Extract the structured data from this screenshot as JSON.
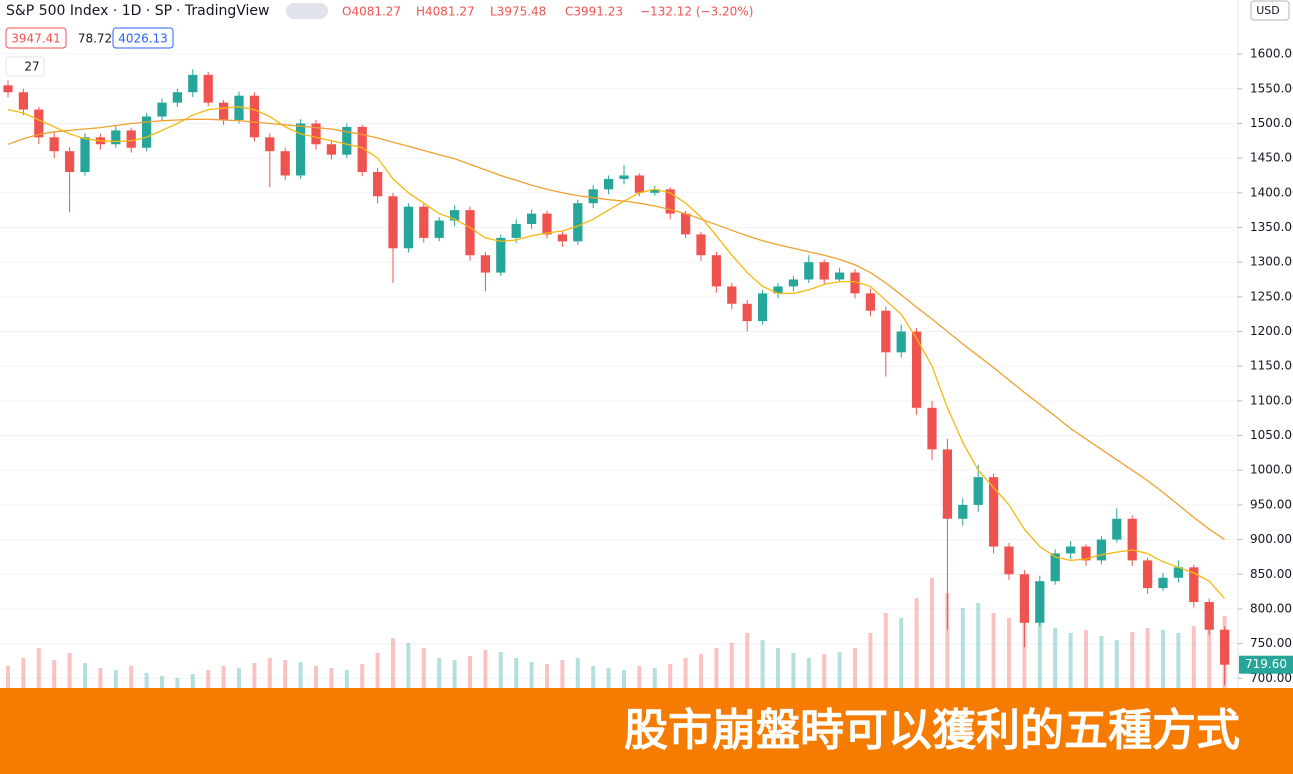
{
  "chart_data": {
    "type": "candlestick",
    "header": {
      "symbol": "S&P 500 Index · 1D · SP",
      "source": "· TradingView",
      "open": "O4081.27",
      "high": "H4081.27",
      "low": "L3975.48",
      "close": "C3991.23",
      "change": "−132.12 (−3.20%)"
    },
    "indicator_values": [
      "3947.41",
      "78.72",
      "4026.13"
    ],
    "volume_label": "27",
    "currency": "USD",
    "banner": "股市崩盤時可以獲利的五種方式",
    "up_color": "#26a69a",
    "down_color": "#ef5350",
    "open": [
      1555,
      1545,
      1520,
      1480,
      1460,
      1430,
      1480,
      1470,
      1490,
      1465,
      1510,
      1530,
      1545,
      1570,
      1530,
      1505,
      1540,
      1480,
      1460,
      1425,
      1500,
      1470,
      1455,
      1495,
      1430,
      1395,
      1320,
      1380,
      1335,
      1360,
      1375,
      1310,
      1285,
      1335,
      1355,
      1370,
      1340,
      1330,
      1385,
      1405,
      1420,
      1425,
      1400,
      1405,
      1370,
      1340,
      1310,
      1265,
      1240,
      1215,
      1255,
      1265,
      1275,
      1300,
      1275,
      1285,
      1255,
      1230,
      1170,
      1200,
      1090,
      1030,
      930,
      950,
      990,
      890,
      850,
      780,
      840,
      880,
      890,
      870,
      900,
      930,
      870,
      830,
      845,
      860,
      810,
      770
    ],
    "high": [
      1562,
      1550,
      1524,
      1488,
      1466,
      1486,
      1485,
      1497,
      1494,
      1515,
      1536,
      1550,
      1578,
      1574,
      1534,
      1546,
      1545,
      1486,
      1465,
      1506,
      1505,
      1475,
      1500,
      1498,
      1436,
      1400,
      1385,
      1384,
      1365,
      1382,
      1380,
      1315,
      1340,
      1362,
      1376,
      1374,
      1345,
      1390,
      1411,
      1425,
      1440,
      1428,
      1410,
      1408,
      1374,
      1344,
      1315,
      1270,
      1246,
      1260,
      1270,
      1280,
      1310,
      1304,
      1292,
      1290,
      1262,
      1236,
      1210,
      1205,
      1100,
      1045,
      960,
      1008,
      995,
      895,
      856,
      848,
      886,
      898,
      893,
      905,
      945,
      935,
      874,
      852,
      870,
      864,
      815,
      775
    ],
    "low": [
      1538,
      1512,
      1470,
      1450,
      1372,
      1425,
      1462,
      1465,
      1458,
      1460,
      1505,
      1524,
      1538,
      1525,
      1498,
      1500,
      1474,
      1408,
      1418,
      1420,
      1462,
      1448,
      1450,
      1424,
      1385,
      1270,
      1314,
      1328,
      1330,
      1352,
      1302,
      1258,
      1280,
      1328,
      1348,
      1334,
      1322,
      1325,
      1378,
      1398,
      1412,
      1395,
      1396,
      1362,
      1335,
      1302,
      1256,
      1232,
      1200,
      1210,
      1248,
      1258,
      1270,
      1268,
      1272,
      1248,
      1222,
      1135,
      1162,
      1080,
      1015,
      770,
      920,
      940,
      880,
      842,
      745,
      775,
      835,
      872,
      862,
      864,
      896,
      862,
      822,
      826,
      838,
      802,
      762,
      690
    ],
    "close": [
      1545,
      1520,
      1480,
      1460,
      1430,
      1480,
      1470,
      1490,
      1465,
      1510,
      1530,
      1545,
      1570,
      1530,
      1505,
      1540,
      1480,
      1460,
      1425,
      1500,
      1470,
      1455,
      1495,
      1430,
      1395,
      1320,
      1380,
      1335,
      1360,
      1375,
      1310,
      1285,
      1335,
      1355,
      1370,
      1340,
      1330,
      1385,
      1405,
      1420,
      1425,
      1400,
      1405,
      1370,
      1340,
      1310,
      1265,
      1240,
      1215,
      1255,
      1265,
      1275,
      1300,
      1275,
      1285,
      1255,
      1230,
      1170,
      1200,
      1090,
      1030,
      930,
      950,
      990,
      890,
      850,
      780,
      840,
      880,
      890,
      870,
      900,
      930,
      870,
      830,
      845,
      860,
      810,
      770,
      719.6
    ],
    "last_price_label": "719.60",
    "volume": [
      22,
      30,
      40,
      28,
      35,
      25,
      20,
      18,
      22,
      15,
      12,
      10,
      14,
      18,
      22,
      20,
      25,
      30,
      28,
      26,
      22,
      20,
      18,
      24,
      35,
      50,
      45,
      40,
      30,
      28,
      32,
      38,
      36,
      30,
      26,
      24,
      28,
      30,
      22,
      20,
      18,
      22,
      20,
      24,
      30,
      34,
      40,
      45,
      55,
      48,
      40,
      35,
      30,
      34,
      36,
      40,
      55,
      75,
      70,
      90,
      110,
      95,
      80,
      85,
      75,
      70,
      90,
      65,
      60,
      55,
      58,
      52,
      48,
      56,
      60,
      58,
      55,
      62,
      70,
      72
    ],
    "lines": [
      {
        "color": "#f5b90f",
        "values": [
          1520,
          1515,
          1505,
          1495,
          1485,
          1478,
          1475,
          1474,
          1475,
          1480,
          1490,
          1500,
          1512,
          1520,
          1522,
          1524,
          1520,
          1510,
          1495,
          1485,
          1480,
          1475,
          1470,
          1465,
          1450,
          1420,
          1400,
          1385,
          1370,
          1362,
          1350,
          1335,
          1330,
          1332,
          1338,
          1342,
          1345,
          1352,
          1362,
          1375,
          1388,
          1400,
          1405,
          1400,
          1385,
          1365,
          1338,
          1310,
          1285,
          1265,
          1255,
          1255,
          1260,
          1268,
          1272,
          1272,
          1265,
          1245,
          1225,
          1190,
          1150,
          1090,
          1040,
          1000,
          975,
          950,
          915,
          890,
          875,
          870,
          872,
          878,
          882,
          885,
          880,
          868,
          860,
          852,
          840,
          815
        ]
      },
      {
        "color": "#f0a030",
        "values": [
          1470,
          1478,
          1484,
          1488,
          1490,
          1492,
          1494,
          1497,
          1500,
          1502,
          1504,
          1505,
          1506,
          1506,
          1505,
          1504,
          1502,
          1500,
          1498,
          1496,
          1494,
          1492,
          1488,
          1484,
          1479,
          1473,
          1467,
          1461,
          1455,
          1449,
          1441,
          1433,
          1425,
          1418,
          1411,
          1405,
          1400,
          1396,
          1393,
          1390,
          1388,
          1385,
          1381,
          1376,
          1370,
          1362,
          1354,
          1346,
          1338,
          1331,
          1325,
          1320,
          1315,
          1310,
          1304,
          1296,
          1285,
          1270,
          1253,
          1235,
          1218,
          1200,
          1182,
          1165,
          1148,
          1130,
          1112,
          1095,
          1078,
          1060,
          1045,
          1030,
          1015,
          1000,
          985,
          968,
          950,
          932,
          915,
          900
        ]
      }
    ],
    "ylim": [
      686,
      1678
    ],
    "yticks": [
      {
        "value": 700,
        "label": "700.00"
      },
      {
        "value": 750,
        "label": "750.00"
      },
      {
        "value": 800,
        "label": "800.00"
      },
      {
        "value": 850,
        "label": "850.00"
      },
      {
        "value": 900,
        "label": "900.00"
      },
      {
        "value": 950,
        "label": "950.00"
      },
      {
        "value": 1000,
        "label": "1000.00"
      },
      {
        "value": 1050,
        "label": "1050.00"
      },
      {
        "value": 1100,
        "label": "1100.00"
      },
      {
        "value": 1150,
        "label": "1150.00"
      },
      {
        "value": 1200,
        "label": "1200.00"
      },
      {
        "value": 1250,
        "label": "1250.00"
      },
      {
        "value": 1300,
        "label": "1300.00"
      },
      {
        "value": 1350,
        "label": "1350.00"
      },
      {
        "value": 1400,
        "label": "1400.00"
      },
      {
        "value": 1450,
        "label": "1450.00"
      },
      {
        "value": 1500,
        "label": "1500.00"
      },
      {
        "value": 1550,
        "label": "1550.00"
      },
      {
        "value": 1600,
        "label": "1600.00"
      }
    ],
    "grid": true
  }
}
